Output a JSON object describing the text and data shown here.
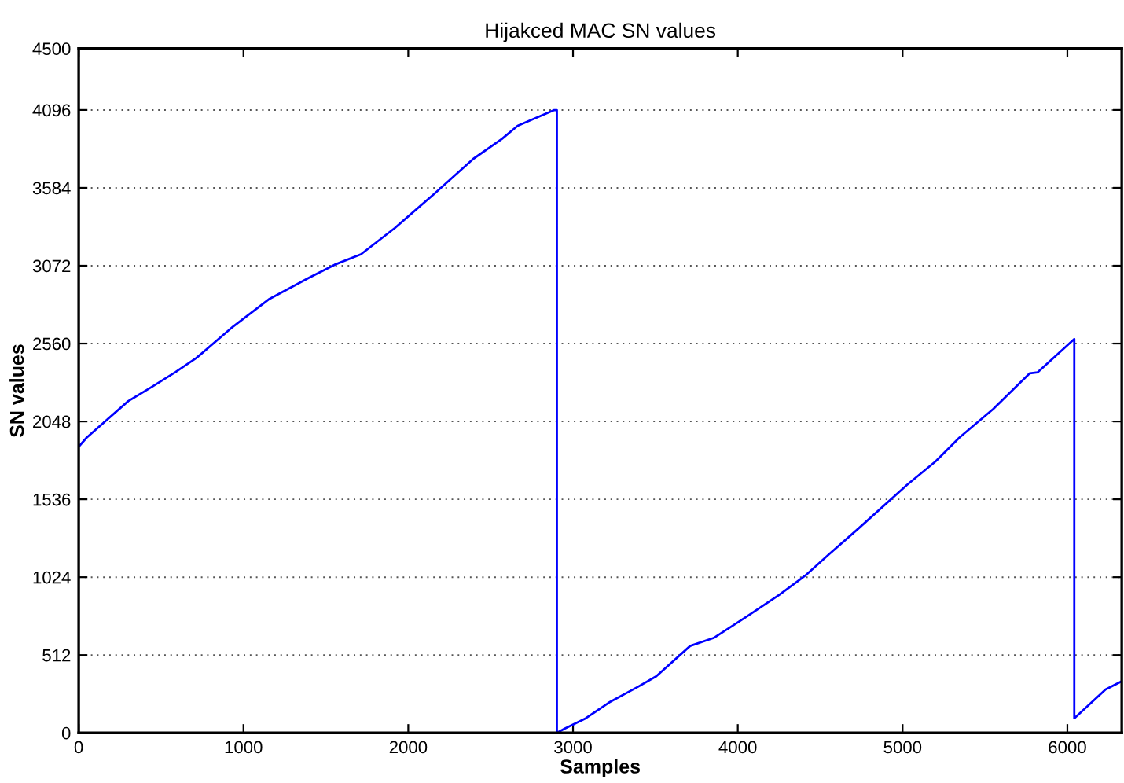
{
  "chart_data": {
    "type": "line",
    "title": "Hijakced MAC SN values",
    "xlabel": "Samples",
    "ylabel": "SN values",
    "series": [
      {
        "color": "#0000ff",
        "x": [
          0,
          48,
          301,
          444,
          587,
          714,
          936,
          1158,
          1396,
          1554,
          1713,
          1919,
          2157,
          2395,
          2569,
          2664,
          2886,
          2902,
          2902,
          2950,
          3077,
          3219,
          3394,
          3505,
          3711,
          3853,
          4059,
          4250,
          4409,
          4551,
          4725,
          5027,
          5201,
          5344,
          5550,
          5772,
          5820,
          6042,
          6042,
          6232,
          6327
        ],
        "values": [
          1882,
          1941,
          2182,
          2275,
          2372,
          2465,
          2671,
          2854,
          2992,
          3079,
          3147,
          3320,
          3544,
          3775,
          3906,
          3992,
          4095,
          4095,
          0,
          28,
          96,
          200,
          303,
          372,
          572,
          624,
          768,
          907,
          1034,
          1172,
          1337,
          1631,
          1786,
          1941,
          2130,
          2365,
          2371,
          2590,
          96,
          286,
          338
        ]
      }
    ],
    "xlim": [
      0,
      6330
    ],
    "xticks": [
      0,
      1000,
      2000,
      3000,
      4000,
      5000,
      6000
    ],
    "ylim": [
      0,
      4500
    ],
    "yticks": [
      0,
      512,
      1024,
      1536,
      2048,
      2560,
      3072,
      3584,
      4096,
      4500
    ],
    "grid": "y",
    "line_style": "solid"
  }
}
